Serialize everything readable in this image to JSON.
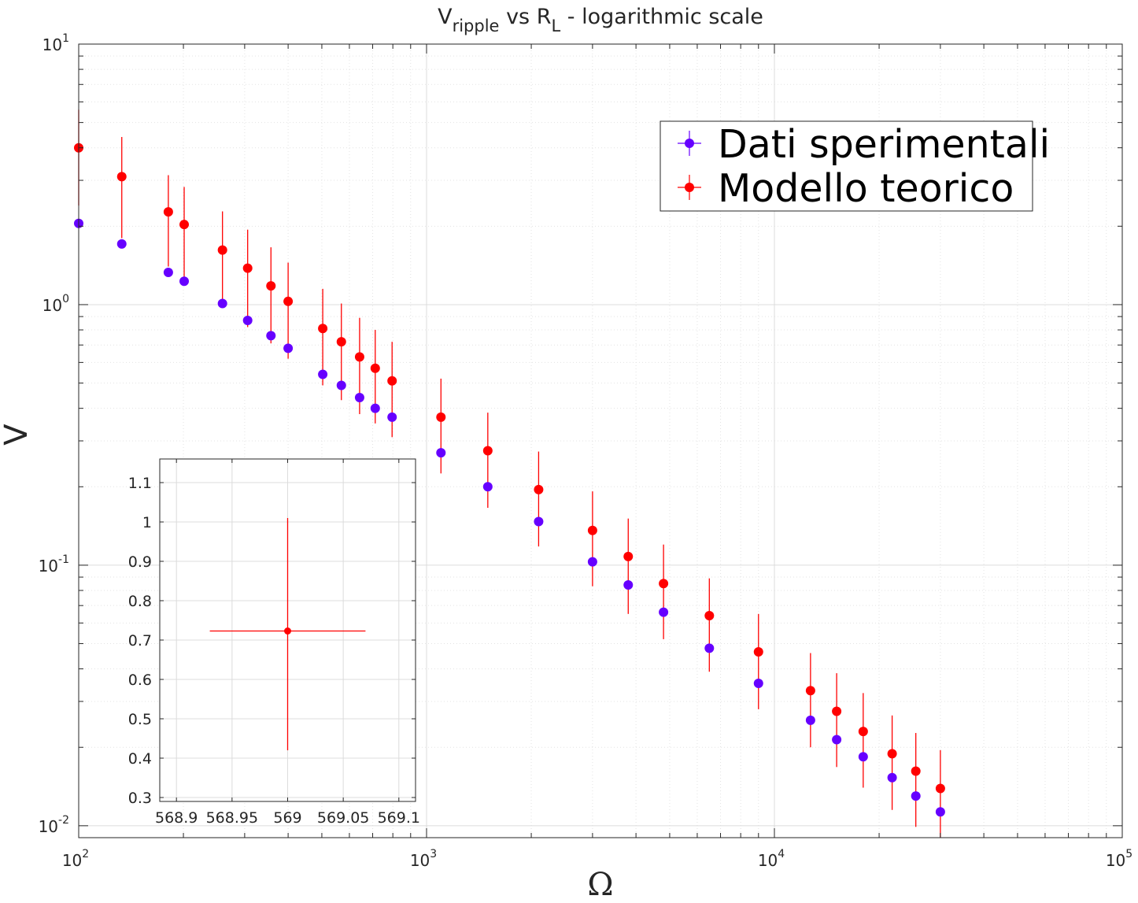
{
  "chart_data": [
    {
      "type": "scatter",
      "title": {
        "main": "V",
        "sub1": "ripple",
        "mid": " vs R",
        "sub2": "L",
        "tail": " - logarithmic scale"
      },
      "xlabel": "Ω",
      "ylabel": "V",
      "xscale": "log",
      "yscale": "log",
      "xlim": [
        100,
        100000
      ],
      "ylim": [
        0.009,
        10
      ],
      "x_ticks": [
        {
          "base": "10",
          "exp": "2",
          "value": 100
        },
        {
          "base": "10",
          "exp": "3",
          "value": 1000
        },
        {
          "base": "10",
          "exp": "4",
          "value": 10000
        },
        {
          "base": "10",
          "exp": "5",
          "value": 100000
        }
      ],
      "y_ticks": [
        {
          "base": "10",
          "exp": "-2",
          "value": 0.01
        },
        {
          "base": "10",
          "exp": "-1",
          "value": 0.1
        },
        {
          "base": "10",
          "exp": "0",
          "value": 1
        },
        {
          "base": "10",
          "exp": "1",
          "value": 10
        }
      ],
      "grid": true,
      "minor_grid": true,
      "legend_position": "top-right",
      "series": [
        {
          "name": "Dati sperimentali",
          "color": "#6600ff",
          "points": [
            {
              "x": 100,
              "y": 2.05
            },
            {
              "x": 133,
              "y": 1.71
            },
            {
              "x": 181,
              "y": 1.33
            },
            {
              "x": 201,
              "y": 1.23
            },
            {
              "x": 259,
              "y": 1.01
            },
            {
              "x": 306,
              "y": 0.87
            },
            {
              "x": 357,
              "y": 0.76
            },
            {
              "x": 400,
              "y": 0.68
            },
            {
              "x": 503,
              "y": 0.54
            },
            {
              "x": 569,
              "y": 0.49
            },
            {
              "x": 642,
              "y": 0.44
            },
            {
              "x": 712,
              "y": 0.4
            },
            {
              "x": 796,
              "y": 0.37
            },
            {
              "x": 1100,
              "y": 0.27
            },
            {
              "x": 1500,
              "y": 0.2
            },
            {
              "x": 2100,
              "y": 0.147
            },
            {
              "x": 3000,
              "y": 0.103
            },
            {
              "x": 3800,
              "y": 0.084
            },
            {
              "x": 4800,
              "y": 0.066
            },
            {
              "x": 6500,
              "y": 0.048
            },
            {
              "x": 9000,
              "y": 0.0352
            },
            {
              "x": 12700,
              "y": 0.0254
            },
            {
              "x": 15100,
              "y": 0.0214
            },
            {
              "x": 18000,
              "y": 0.0184
            },
            {
              "x": 21800,
              "y": 0.0153
            },
            {
              "x": 25500,
              "y": 0.013
            },
            {
              "x": 30000,
              "y": 0.0113
            }
          ]
        },
        {
          "name": "Modello teorico",
          "color": "#ff0000",
          "points": [
            {
              "x": 100,
              "y": 4.0,
              "ylo": 2.4,
              "yhi": 5.6
            },
            {
              "x": 133,
              "y": 3.1,
              "ylo": 1.8,
              "yhi": 4.4
            },
            {
              "x": 181,
              "y": 2.27,
              "ylo": 1.4,
              "yhi": 3.14
            },
            {
              "x": 201,
              "y": 2.03,
              "ylo": 1.23,
              "yhi": 2.83
            },
            {
              "x": 259,
              "y": 1.62,
              "ylo": 1.0,
              "yhi": 2.28
            },
            {
              "x": 306,
              "y": 1.38,
              "ylo": 0.82,
              "yhi": 1.94
            },
            {
              "x": 357,
              "y": 1.18,
              "ylo": 0.71,
              "yhi": 1.66
            },
            {
              "x": 400,
              "y": 1.03,
              "ylo": 0.62,
              "yhi": 1.45
            },
            {
              "x": 503,
              "y": 0.81,
              "ylo": 0.49,
              "yhi": 1.15
            },
            {
              "x": 569,
              "y": 0.72,
              "ylo": 0.43,
              "yhi": 1.01
            },
            {
              "x": 642,
              "y": 0.63,
              "ylo": 0.38,
              "yhi": 0.89
            },
            {
              "x": 712,
              "y": 0.57,
              "ylo": 0.35,
              "yhi": 0.8
            },
            {
              "x": 796,
              "y": 0.51,
              "ylo": 0.31,
              "yhi": 0.72
            },
            {
              "x": 1100,
              "y": 0.37,
              "ylo": 0.225,
              "yhi": 0.52
            },
            {
              "x": 1500,
              "y": 0.275,
              "ylo": 0.166,
              "yhi": 0.385
            },
            {
              "x": 2100,
              "y": 0.195,
              "ylo": 0.118,
              "yhi": 0.273
            },
            {
              "x": 3000,
              "y": 0.136,
              "ylo": 0.083,
              "yhi": 0.192
            },
            {
              "x": 3800,
              "y": 0.108,
              "ylo": 0.065,
              "yhi": 0.151
            },
            {
              "x": 4800,
              "y": 0.085,
              "ylo": 0.052,
              "yhi": 0.12
            },
            {
              "x": 6500,
              "y": 0.064,
              "ylo": 0.039,
              "yhi": 0.089
            },
            {
              "x": 9000,
              "y": 0.0465,
              "ylo": 0.028,
              "yhi": 0.065
            },
            {
              "x": 12700,
              "y": 0.033,
              "ylo": 0.02,
              "yhi": 0.046
            },
            {
              "x": 15100,
              "y": 0.0275,
              "ylo": 0.0168,
              "yhi": 0.0385
            },
            {
              "x": 18000,
              "y": 0.023,
              "ylo": 0.014,
              "yhi": 0.0323
            },
            {
              "x": 21800,
              "y": 0.0189,
              "ylo": 0.0115,
              "yhi": 0.0265
            },
            {
              "x": 25500,
              "y": 0.0162,
              "ylo": 0.0099,
              "yhi": 0.0227
            },
            {
              "x": 30000,
              "y": 0.0139,
              "ylo": 0.0085,
              "yhi": 0.0195
            }
          ]
        }
      ]
    },
    {
      "type": "scatter",
      "role": "inset",
      "xscale": "linear",
      "yscale": "linear",
      "xlim": [
        568.885,
        569.115
      ],
      "ylim": [
        0.29,
        1.16
      ],
      "x_ticks": [
        "568.9",
        "568.95",
        "569",
        "569.05",
        "569.1"
      ],
      "x_tick_values": [
        568.9,
        568.95,
        569,
        569.05,
        569.1
      ],
      "y_ticks": [
        "0.3",
        "0.4",
        "0.5",
        "0.6",
        "0.7",
        "0.8",
        "0.9",
        "1",
        "1.1"
      ],
      "y_tick_values": [
        0.3,
        0.4,
        0.5,
        0.6,
        0.7,
        0.8,
        0.9,
        1.0,
        1.1
      ],
      "grid": true,
      "points": [
        {
          "x": 569,
          "y": 0.723,
          "xlo": 568.93,
          "xhi": 569.07,
          "ylo": 0.42,
          "yhi": 1.01,
          "color": "#ff0000"
        }
      ]
    }
  ]
}
